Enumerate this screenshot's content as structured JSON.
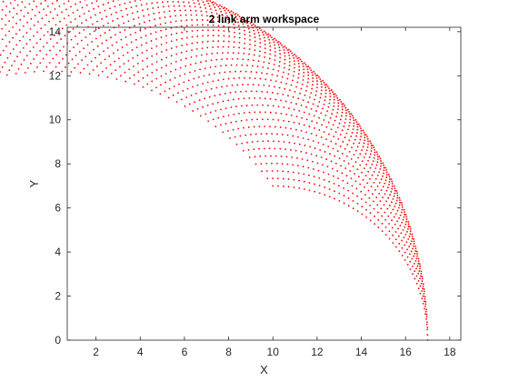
{
  "chart_data": {
    "type": "scatter",
    "title": "2 link arm workspace",
    "xlabel": "X",
    "ylabel": "Y",
    "xlim": [
      0.7,
      18.5
    ],
    "ylim": [
      0,
      14.2
    ],
    "xticks": [
      2,
      4,
      6,
      8,
      10,
      12,
      14,
      16,
      18
    ],
    "yticks": [
      0,
      2,
      4,
      6,
      8,
      10,
      12,
      14
    ],
    "grid": false,
    "box": true,
    "marker_color": "#ff0000",
    "axis_color": "#262626",
    "arm": {
      "link1_length": 10,
      "link2_length": 7,
      "theta1_deg": [
        0,
        90
      ],
      "theta2_deg": [
        0,
        90
      ]
    }
  }
}
